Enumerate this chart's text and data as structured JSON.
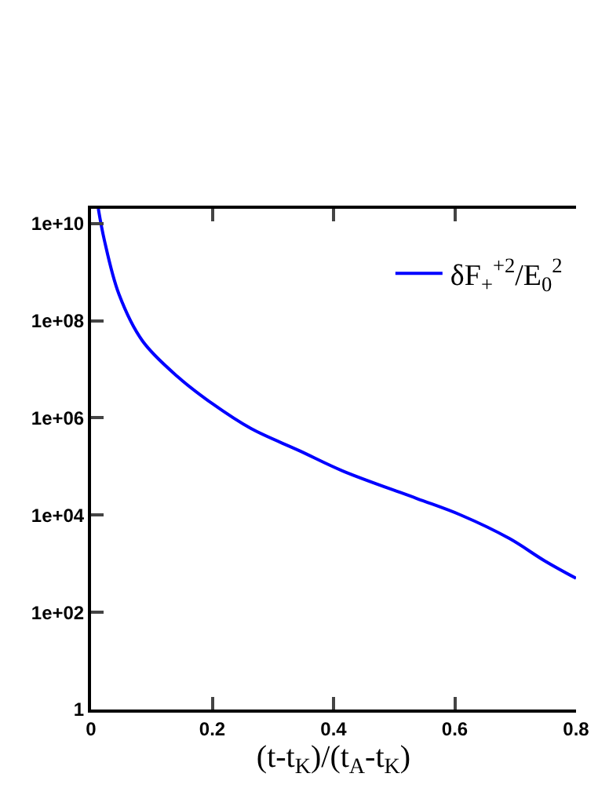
{
  "chart_data": {
    "type": "line",
    "xlabel": "(t-t$_{K}$)/(t$_{A}$-t$_{K}$)",
    "x": [
      0.012,
      0.022,
      0.046,
      0.085,
      0.143,
      0.199,
      0.264,
      0.344,
      0.416,
      0.537,
      0.61,
      0.69,
      0.748,
      0.8
    ],
    "series": [
      {
        "name": "δF$_{+}$$^{+2}$/E$_{0}$$^{2}$",
        "color": "#0000ff",
        "values": [
          20000000000.0,
          4500000000.0,
          350000000.0,
          38000000.0,
          7000000.0,
          2000000.0,
          600000.0,
          210000.0,
          80000.0,
          22000.0,
          10000.0,
          3300.0,
          1150.0,
          500.0
        ]
      }
    ],
    "log": "y",
    "xlim": [
      0,
      0.8
    ],
    "ylim": [
      1,
      20000000000.0
    ],
    "xticks": [
      0,
      0.2,
      0.4,
      0.6,
      0.8
    ],
    "yticks": [
      {
        "value": 1,
        "label": "1"
      },
      {
        "value": 100,
        "label": "1e+02"
      },
      {
        "value": 10000,
        "label": "1e+04"
      },
      {
        "value": 1000000,
        "label": "1e+06"
      },
      {
        "value": 100000000,
        "label": "1e+08"
      },
      {
        "value": 10000000000,
        "label": "1e+10"
      }
    ],
    "legend": "top right",
    "marker": "none",
    "line_style": "solid"
  }
}
